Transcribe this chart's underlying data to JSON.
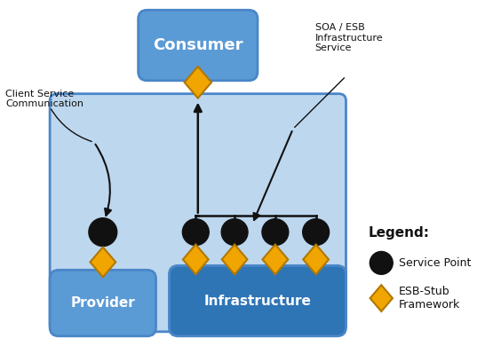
{
  "fig_width": 5.64,
  "fig_height": 4.08,
  "dpi": 100,
  "bg_color": "#ffffff",
  "light_blue": "#bdd7ee",
  "mid_blue": "#5b9bd5",
  "dark_blue": "#2e75b6",
  "orange": "#f0a500",
  "black": "#111111",
  "white": "#ffffff",
  "border_blue": "#4a86c8",
  "labels": {
    "consumer": "Consumer",
    "provider": "Provider",
    "infrastructure": "Infrastructure",
    "legend_title": "Legend:",
    "service_point": "Service Point",
    "esb_stub": "ESB-Stub\nFramework",
    "client_service": "Client Service\nCommunication",
    "soa_esb": "SOA / ESB\nInfrastructure\nService"
  }
}
